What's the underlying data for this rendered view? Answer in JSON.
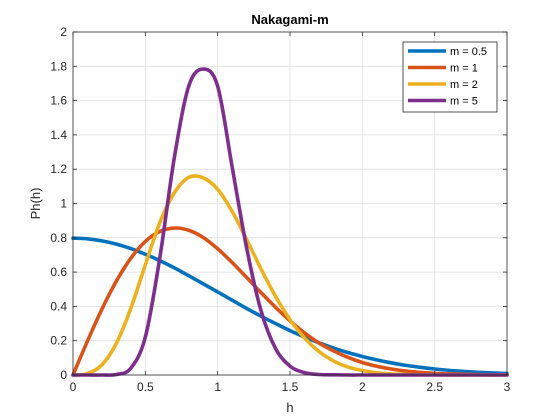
{
  "chart_data": {
    "type": "line",
    "title": "Nakagami-m",
    "xlabel": "h",
    "ylabel": "Ph(h)",
    "xlim": [
      0,
      3
    ],
    "ylim": [
      0,
      2
    ],
    "xticks": [
      0,
      0.5,
      1,
      1.5,
      2,
      2.5,
      3
    ],
    "xtick_labels": [
      "0",
      "0.5",
      "1",
      "1.5",
      "2",
      "2.5",
      "3"
    ],
    "yticks": [
      0,
      0.2,
      0.4,
      0.6,
      0.8,
      1,
      1.2,
      1.4,
      1.6,
      1.8,
      2
    ],
    "ytick_labels": [
      "0",
      "0.2",
      "0.4",
      "0.6",
      "0.8",
      "1",
      "1.2",
      "1.4",
      "1.6",
      "1.8",
      "2"
    ],
    "grid": true,
    "legend_position": "top-right",
    "x": [
      0,
      0.1,
      0.2,
      0.3,
      0.4,
      0.5,
      0.6,
      0.7,
      0.8,
      0.9,
      1.0,
      1.1,
      1.2,
      1.3,
      1.4,
      1.5,
      1.6,
      1.7,
      1.8,
      1.9,
      2.0,
      2.1,
      2.2,
      2.3,
      2.4,
      2.5,
      2.6,
      2.7,
      2.8,
      2.9,
      3.0
    ],
    "series": [
      {
        "name": "m = 0.5",
        "color": "#0072bd",
        "values": [
          0.798,
          0.794,
          0.782,
          0.763,
          0.737,
          0.704,
          0.667,
          0.625,
          0.579,
          0.532,
          0.484,
          0.436,
          0.388,
          0.343,
          0.3,
          0.259,
          0.222,
          0.188,
          0.158,
          0.131,
          0.108,
          0.088,
          0.071,
          0.056,
          0.045,
          0.035,
          0.027,
          0.021,
          0.016,
          0.012,
          0.009
        ]
      },
      {
        "name": "m = 1",
        "color": "#d95319",
        "values": [
          0,
          0.198,
          0.384,
          0.548,
          0.681,
          0.779,
          0.837,
          0.857,
          0.844,
          0.802,
          0.736,
          0.656,
          0.569,
          0.48,
          0.395,
          0.316,
          0.246,
          0.187,
          0.141,
          0.103,
          0.073,
          0.051,
          0.035,
          0.023,
          0.015,
          0.01,
          0.006,
          0.004,
          0.002,
          0.001,
          0.001
        ]
      },
      {
        "name": "m = 2",
        "color": "#edb120",
        "values": [
          0,
          0.008,
          0.059,
          0.185,
          0.389,
          0.642,
          0.888,
          1.062,
          1.152,
          1.15,
          1.083,
          0.954,
          0.79,
          0.618,
          0.459,
          0.323,
          0.216,
          0.137,
          0.082,
          0.047,
          0.026,
          0.013,
          0.006,
          0.003,
          0.001,
          0.001,
          0,
          0,
          0,
          0,
          0
        ]
      },
      {
        "name": "m = 5",
        "color": "#7e2f8e",
        "values": [
          0,
          0,
          0,
          0.003,
          0.04,
          0.221,
          0.683,
          1.265,
          1.684,
          1.784,
          1.684,
          1.214,
          0.742,
          0.374,
          0.155,
          0.052,
          0.014,
          0.003,
          0.001,
          0,
          0,
          0,
          0,
          0,
          0,
          0,
          0,
          0,
          0,
          0,
          0
        ]
      }
    ]
  }
}
